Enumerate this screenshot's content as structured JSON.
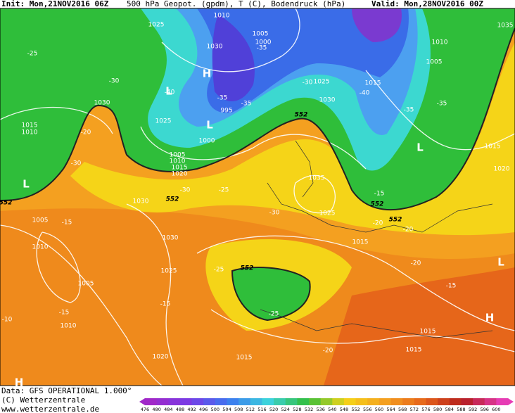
{
  "header": {
    "init": "Init: Mon,21NOV2016 06Z",
    "product": "500 hPa Geopot. (gpdm), T (C), Bodendruck (hPa)",
    "valid": "Valid: Mon,28NOV2016 00Z"
  },
  "footer": {
    "data": "Data: GFS OPERATIONAL 1.000°",
    "copyright": "(C) Wetterzentrale",
    "site": "www.wetterzentrale.de"
  },
  "colorbar": [
    476,
    480,
    484,
    488,
    492,
    496,
    500,
    504,
    508,
    512,
    516,
    520,
    524,
    528,
    532,
    536,
    540,
    548,
    552,
    556,
    560,
    564,
    568,
    572,
    576,
    580,
    584,
    588,
    592,
    596,
    600
  ],
  "isobar_labels": [
    "1025",
    "1010",
    "1005",
    "1000",
    "1030",
    "1010",
    "1005",
    "1015",
    "1025",
    "1030",
    "995",
    "1025",
    "1000",
    "1005",
    "1010",
    "1015",
    "1020",
    "1030",
    "1015",
    "1010",
    "1015",
    "1020",
    "1035",
    "1030",
    "1025",
    "1005",
    "1010",
    "1030",
    "1015",
    "1025",
    "1005",
    "1010",
    "1020",
    "1015",
    "1015",
    "1015",
    "1035"
  ],
  "temperature_labels": [
    "-25",
    "-30",
    "-20",
    "-30",
    "-15",
    "-40",
    "-35",
    "-35",
    "-30",
    "-40",
    "-35",
    "-35",
    "-30",
    "-25",
    "-30",
    "-15",
    "-20",
    "-20",
    "-20",
    "-15",
    "-25",
    "-15",
    "-15",
    "-10",
    "-25",
    "-20",
    "-35"
  ],
  "contour_labels": [
    "552",
    "552",
    "552",
    "552",
    "552",
    "552"
  ],
  "pressure_centers": [
    "H",
    "L",
    "L",
    "L",
    "L",
    "H",
    "L",
    "H"
  ]
}
